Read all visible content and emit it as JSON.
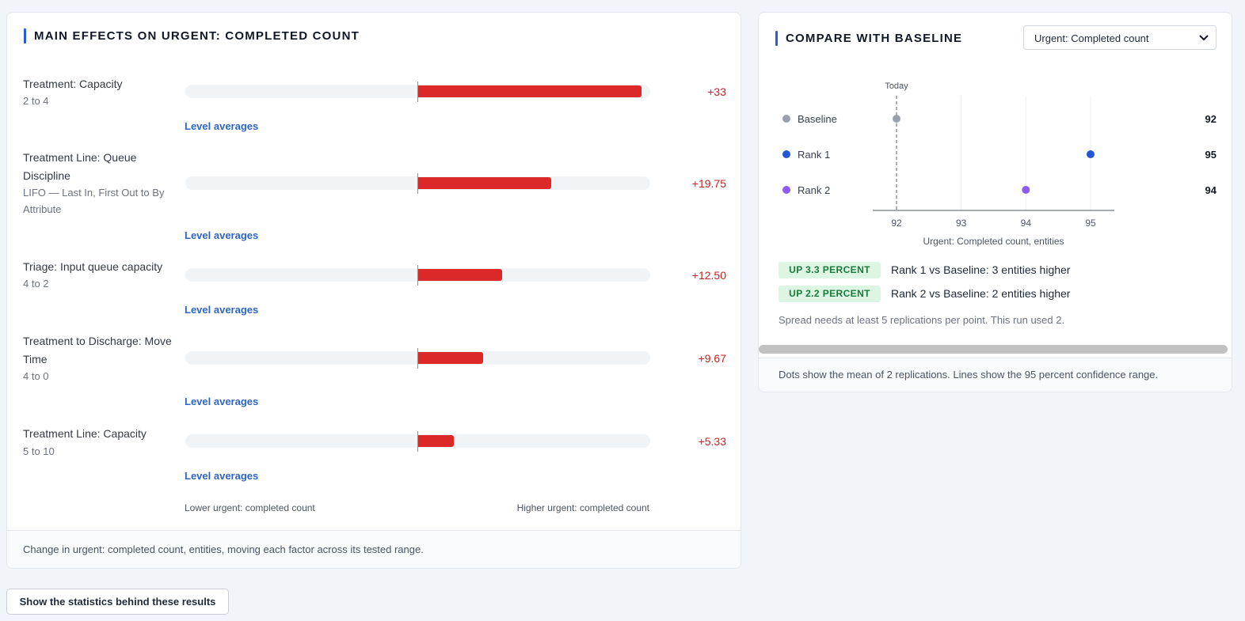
{
  "main_effects": {
    "title": "MAIN EFFECTS ON URGENT: COMPLETED COUNT",
    "factors": [
      {
        "name": "Treatment: Capacity",
        "range": "2 to 4",
        "value_label": "+33",
        "effect": 33,
        "link": "Level averages"
      },
      {
        "name": "Treatment Line: Queue Discipline",
        "range": "LIFO — Last In, First Out to By Attribute",
        "value_label": "+19.75",
        "effect": 19.75,
        "link": "Level averages"
      },
      {
        "name": "Triage: Input queue capacity",
        "range": "4 to 2",
        "value_label": "+12.50",
        "effect": 12.5,
        "link": "Level averages"
      },
      {
        "name": "Treatment to Discharge: Move Time",
        "range": "4 to 0",
        "value_label": "+9.67",
        "effect": 9.67,
        "link": "Level averages"
      },
      {
        "name": "Treatment Line: Capacity",
        "range": "5 to 10",
        "value_label": "+5.33",
        "effect": 5.33,
        "link": "Level averages"
      }
    ],
    "axis_low_label": "Lower urgent: completed count",
    "axis_high_label": "Higher urgent: completed count",
    "footer": "Change in urgent: completed count, entities, moving each factor across its tested range."
  },
  "compare": {
    "title": "COMPARE WITH BASELINE",
    "select_value": "Urgent: Completed count",
    "today_label": "Today",
    "footer": "Dots show the mean of 2 replications. Lines show the 95 percent confidence range.",
    "note": "Spread needs at least 5 replications per point. This run used 2.",
    "comparisons": [
      {
        "badge": "UP 3.3 PERCENT",
        "text": "Rank 1 vs Baseline: 3 entities higher"
      },
      {
        "badge": "UP 2.2 PERCENT",
        "text": "Rank 2 vs Baseline: 2 entities higher"
      }
    ]
  },
  "chart_data": {
    "type": "scatter",
    "series": [
      {
        "name": "Baseline",
        "value": 92,
        "label": "92",
        "color": "#9aa1ad"
      },
      {
        "name": "Rank 1",
        "value": 95,
        "label": "95",
        "color": "#2457d6"
      },
      {
        "name": "Rank 2",
        "value": 94,
        "label": "94",
        "color": "#8b5cf6"
      }
    ],
    "x_ticks": [
      "92",
      "93",
      "94",
      "95"
    ],
    "xlim": [
      92,
      95
    ],
    "xlabel": "Urgent: Completed count, entities",
    "reference_line": {
      "value": 92,
      "label": "Today"
    },
    "grid": true
  },
  "actions": {
    "stats_button": "Show the statistics behind these results"
  },
  "colors": {
    "accent": "#2d5bd7",
    "effect_bar": "#dc2828",
    "badge_bg": "#dcf6e3",
    "badge_text": "#1b7a3a"
  }
}
